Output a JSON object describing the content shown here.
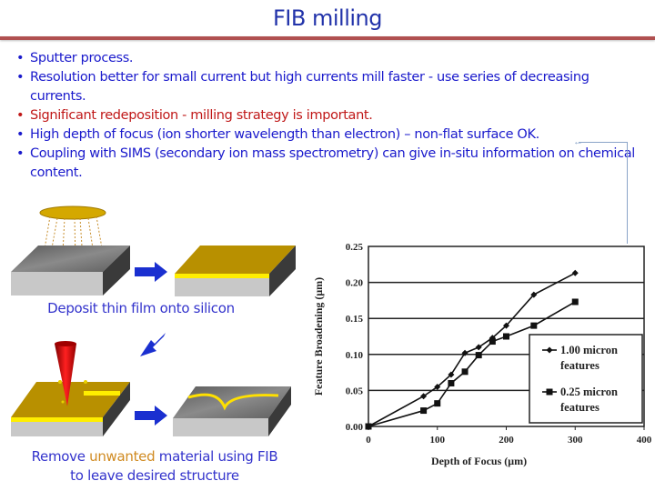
{
  "slide": {
    "title": "FIB milling",
    "bullets": [
      {
        "text": "Sputter process.",
        "color": "#1a1acc"
      },
      {
        "text": "Resolution better for small current but high currents mill faster - use series of decreasing currents.",
        "color": "#1a1acc"
      },
      {
        "text": "Significant redeposition - milling strategy is important.",
        "color": "#c01818"
      },
      {
        "text": "High depth of focus (ion shorter wavelength than electron) – non-flat surface OK.",
        "color": "#1a1acc"
      },
      {
        "text": "Coupling with SIMS (secondary ion mass spectrometry) can give in-situ information on chemical content.",
        "color": "#1a1acc"
      }
    ]
  },
  "diagram": {
    "caption_top": "Deposit thin film onto silicon",
    "caption_bottom_pre": "Remove ",
    "caption_bottom_highlight": "unwanted",
    "caption_bottom_post": " material using FIB",
    "caption_bottom_line2": "to leave desired structure"
  },
  "chart_data": {
    "type": "line",
    "title": "",
    "xlabel": "Depth of Focus (μm)",
    "ylabel": "Feature Broadening (μm)",
    "xlim": [
      0,
      400
    ],
    "ylim": [
      0,
      0.25
    ],
    "x_ticks": [
      "0",
      "100",
      "200",
      "300",
      "400"
    ],
    "y_ticks": [
      "0.00",
      "0.05",
      "0.10",
      "0.15",
      "0.20",
      "0.25"
    ],
    "grid": "horizontal",
    "legend_position": "lower right (inside)",
    "series": [
      {
        "name": "1.00 micron features",
        "marker": "diamond",
        "x": [
          0,
          80,
          100,
          120,
          140,
          160,
          180,
          200,
          240,
          300
        ],
        "y": [
          0.0,
          0.042,
          0.055,
          0.072,
          0.102,
          0.11,
          0.123,
          0.14,
          0.183,
          0.213
        ]
      },
      {
        "name": "0.25 micron features",
        "marker": "square",
        "x": [
          0,
          80,
          100,
          120,
          140,
          160,
          180,
          200,
          240,
          300
        ],
        "y": [
          0.0,
          0.022,
          0.032,
          0.06,
          0.076,
          0.099,
          0.118,
          0.125,
          0.14,
          0.173
        ]
      }
    ]
  }
}
